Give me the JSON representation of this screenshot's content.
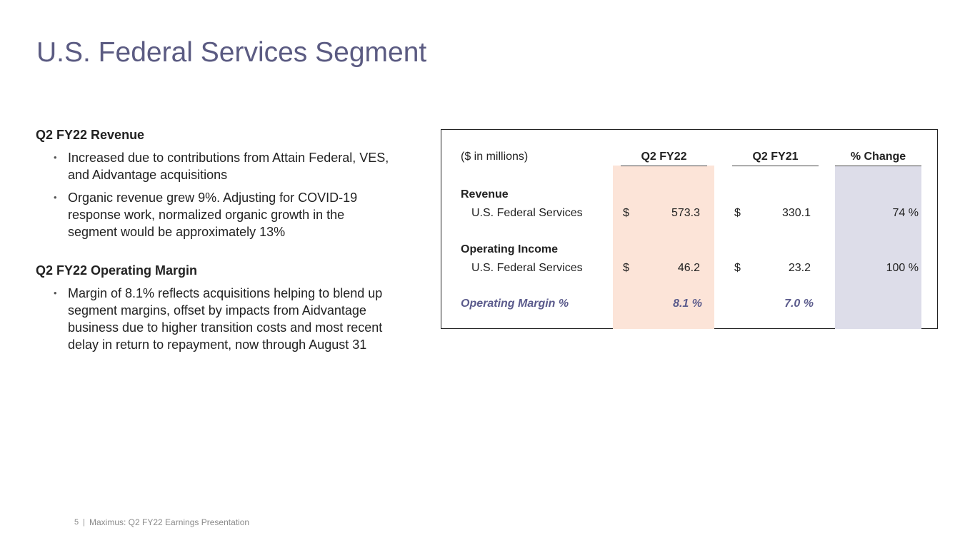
{
  "title": "U.S. Federal Services Segment",
  "sections": [
    {
      "heading": "Q2 FY22 Revenue",
      "bullets": [
        "Increased due to contributions from Attain Federal, VES, and Aidvantage acquisitions",
        "Organic revenue grew 9%. Adjusting for COVID-19 response work, normalized organic growth in the segment would be approximately 13%"
      ]
    },
    {
      "heading": "Q2 FY22 Operating Margin",
      "bullets": [
        "Margin of 8.1% reflects acquisitions helping to blend up segment margins, offset by impacts from Aidvantage business due to higher transition costs and most recent delay in return to repayment, now through August 31"
      ]
    }
  ],
  "table": {
    "header": [
      "($ in millions)",
      "Q2 FY22",
      "Q2 FY21",
      "% Change"
    ],
    "rows": [
      [
        "Revenue"
      ],
      [
        "U.S. Federal Services",
        "$",
        "573.3",
        "$",
        "330.1",
        "74 %"
      ],
      [
        "Operating Income"
      ],
      [
        "U.S. Federal Services",
        "$",
        "46.2",
        "$",
        "23.2",
        "100 %"
      ],
      [
        "Operating Margin %",
        "8.1 %",
        "7.0 %"
      ]
    ]
  },
  "footer": {
    "page": "5",
    "separator": "|",
    "text": "Maximus: Q2 FY22 Earnings Presentation"
  }
}
